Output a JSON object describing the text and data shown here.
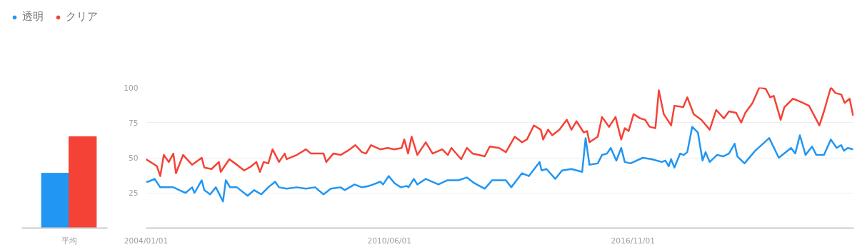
{
  "chart_data": [
    {
      "type": "bar",
      "categories": [
        "平均"
      ],
      "ylim": [
        0,
        100
      ],
      "tick_labels": "x",
      "legend": "top left",
      "grid": false,
      "series": [
        {
          "name": "透明",
          "color": "#2196f3",
          "values": [
            39
          ]
        },
        {
          "name": "クリア",
          "color": "#f44336",
          "values": [
            65
          ]
        }
      ]
    },
    {
      "type": "line",
      "xlim": [
        "2004-01-01",
        "2022-08-28"
      ],
      "ylim": [
        0,
        100
      ],
      "grid": "y",
      "xticks": [
        {
          "value": "2004-01-01",
          "label": "2004/01/01"
        },
        {
          "value": "2010-06-01",
          "label": "2010/06/01"
        },
        {
          "value": "2016-11-01",
          "label": "2016/11/01"
        }
      ],
      "yticks": [
        25,
        50,
        75,
        100
      ],
      "series": [
        {
          "color": "#2196f3",
          "x": [
            "2004-01-01",
            "2004-01-22",
            "2004-03-23",
            "2004-05-17",
            "2004-09-20",
            "2005-01-15",
            "2005-03-20",
            "2005-04-11",
            "2005-06-20",
            "2005-07-15",
            "2005-09-09",
            "2005-11-03",
            "2006-01-11",
            "2006-02-07",
            "2006-03-20",
            "2006-05-25",
            "2006-09-05",
            "2006-11-07",
            "2007-01-15",
            "2007-03-23",
            "2007-05-28",
            "2007-07-04",
            "2007-09-16",
            "2007-12-23",
            "2008-03-20",
            "2008-06-16",
            "2008-09-05",
            "2008-11-14",
            "2009-02-17",
            "2009-03-27",
            "2009-07-01",
            "2009-09-09",
            "2009-11-17",
            "2009-12-27",
            "2010-03-05",
            "2010-04-01",
            "2010-05-25",
            "2010-07-19",
            "2010-09-20",
            "2010-11-14",
            "2010-12-02",
            "2011-01-22",
            "2011-02-25",
            "2011-05-17",
            "2011-09-16",
            "2011-12-09",
            "2012-03-27",
            "2012-06-16",
            "2012-08-25",
            "2012-12-05",
            "2013-02-14",
            "2013-06-27",
            "2013-08-17",
            "2013-11-28",
            "2014-02-03",
            "2014-05-17",
            "2014-06-05",
            "2014-07-22",
            "2014-10-15",
            "2014-12-20",
            "2015-03-20",
            "2015-07-01",
            "2015-08-03",
            "2015-09-09",
            "2015-11-28",
            "2016-01-08",
            "2016-02-25",
            "2016-04-01",
            "2016-05-25",
            "2016-07-11",
            "2016-08-14",
            "2016-10-08",
            "2017-02-03",
            "2017-04-29",
            "2017-08-07",
            "2017-09-09",
            "2017-10-11",
            "2017-11-03",
            "2017-12-05",
            "2018-01-29",
            "2018-03-05",
            "2018-04-08",
            "2018-05-25",
            "2018-07-19",
            "2018-09-02",
            "2018-10-01",
            "2018-11-10",
            "2019-01-19",
            "2019-03-20",
            "2019-05-14",
            "2019-07-08",
            "2019-08-03",
            "2019-10-11",
            "2020-01-22",
            "2020-06-05",
            "2020-09-05",
            "2021-01-01",
            "2021-02-10",
            "2021-03-27",
            "2021-05-21",
            "2021-07-22",
            "2021-09-02",
            "2021-11-14",
            "2022-01-19",
            "2022-03-16",
            "2022-04-29",
            "2022-05-25",
            "2022-07-01",
            "2022-08-21"
          ],
          "values": [
            33,
            33,
            35,
            29,
            29,
            25,
            29,
            25,
            34,
            27,
            24,
            29,
            19,
            34,
            29,
            29,
            23,
            27,
            24,
            29,
            33,
            29,
            28,
            29,
            28,
            29,
            24,
            28,
            29,
            27,
            31,
            29,
            30,
            31,
            33,
            31,
            37,
            32,
            29,
            30,
            29,
            35,
            31,
            35,
            31,
            34,
            34,
            36,
            32,
            28,
            34,
            34,
            29,
            39,
            37,
            47,
            41,
            42,
            35,
            41,
            42,
            40,
            64,
            45,
            46,
            52,
            53,
            57,
            48,
            57,
            47,
            46,
            50,
            49,
            47,
            48,
            44,
            49,
            43,
            53,
            52,
            54,
            72,
            68,
            48,
            54,
            47,
            52,
            51,
            53,
            60,
            51,
            46,
            55,
            64,
            50,
            57,
            53,
            66,
            52,
            58,
            52,
            52,
            63,
            57,
            59,
            55,
            57,
            56
          ]
        },
        {
          "color": "#f44336",
          "x": [
            "2004-01-01",
            "2004-04-15",
            "2004-05-17",
            "2004-06-20",
            "2004-08-07",
            "2004-09-20",
            "2004-10-15",
            "2004-12-23",
            "2005-03-20",
            "2005-06-20",
            "2005-07-15",
            "2005-09-23",
            "2005-12-02",
            "2005-12-20",
            "2006-03-13",
            "2006-05-07",
            "2006-08-03",
            "2006-10-11",
            "2006-11-28",
            "2007-01-01",
            "2007-02-07",
            "2007-03-23",
            "2007-05-03",
            "2007-07-04",
            "2007-08-28",
            "2007-09-16",
            "2007-12-23",
            "2008-03-20",
            "2008-05-07",
            "2008-09-05",
            "2008-10-01",
            "2008-12-09",
            "2009-02-17",
            "2009-04-26",
            "2009-07-08",
            "2009-09-09",
            "2009-10-19",
            "2009-12-05",
            "2010-03-05",
            "2010-05-14",
            "2010-07-19",
            "2010-09-27",
            "2010-10-22",
            "2010-11-28",
            "2011-01-01",
            "2011-02-25",
            "2011-05-17",
            "2011-07-22",
            "2011-10-22",
            "2011-12-16",
            "2012-01-19",
            "2012-04-22",
            "2012-06-16",
            "2012-08-10",
            "2012-12-05",
            "2013-01-22",
            "2013-04-22",
            "2013-06-27",
            "2013-09-20",
            "2013-11-28",
            "2014-01-15",
            "2014-03-23",
            "2014-05-28",
            "2014-06-20",
            "2014-08-07",
            "2014-09-16",
            "2014-11-25",
            "2015-02-03",
            "2015-03-20",
            "2015-05-07",
            "2015-07-16",
            "2015-08-17",
            "2015-09-09",
            "2015-11-28",
            "2016-01-08",
            "2016-03-16",
            "2016-05-17",
            "2016-07-11",
            "2016-08-14",
            "2016-09-20",
            "2016-11-07",
            "2017-01-11",
            "2017-02-25",
            "2017-04-11",
            "2017-06-05",
            "2017-07-08",
            "2017-08-25",
            "2017-11-03",
            "2017-12-05",
            "2018-02-28",
            "2018-04-08",
            "2018-06-09",
            "2018-08-21",
            "2018-11-10",
            "2019-01-11",
            "2019-03-27",
            "2019-05-14",
            "2019-07-22",
            "2019-09-09",
            "2019-10-19",
            "2019-12-27",
            "2020-03-02",
            "2020-05-03",
            "2020-06-13",
            "2020-07-19",
            "2020-09-23",
            "2020-10-29",
            "2021-01-19",
            "2021-03-27",
            "2021-06-23",
            "2021-10-01",
            "2021-11-14",
            "2022-01-19",
            "2022-03-05",
            "2022-04-29",
            "2022-06-02",
            "2022-07-19",
            "2022-08-21"
          ],
          "values": [
            49,
            44,
            37,
            52,
            47,
            53,
            39,
            52,
            45,
            50,
            43,
            42,
            47,
            40,
            49,
            46,
            41,
            44,
            47,
            40,
            47,
            46,
            56,
            47,
            53,
            49,
            52,
            56,
            53,
            53,
            47,
            53,
            52,
            55,
            59,
            54,
            53,
            59,
            56,
            57,
            56,
            57,
            63,
            53,
            65,
            52,
            61,
            53,
            56,
            52,
            57,
            49,
            57,
            53,
            51,
            58,
            57,
            54,
            65,
            61,
            63,
            73,
            70,
            63,
            70,
            66,
            70,
            77,
            70,
            76,
            68,
            69,
            61,
            65,
            79,
            72,
            79,
            63,
            71,
            69,
            81,
            78,
            77,
            72,
            71,
            98,
            81,
            73,
            87,
            86,
            93,
            81,
            77,
            70,
            84,
            78,
            83,
            82,
            75,
            82,
            89,
            100,
            99,
            93,
            94,
            77,
            86,
            92,
            90,
            87,
            73,
            83,
            100,
            96,
            95,
            89,
            92,
            80
          ]
        }
      ]
    }
  ]
}
